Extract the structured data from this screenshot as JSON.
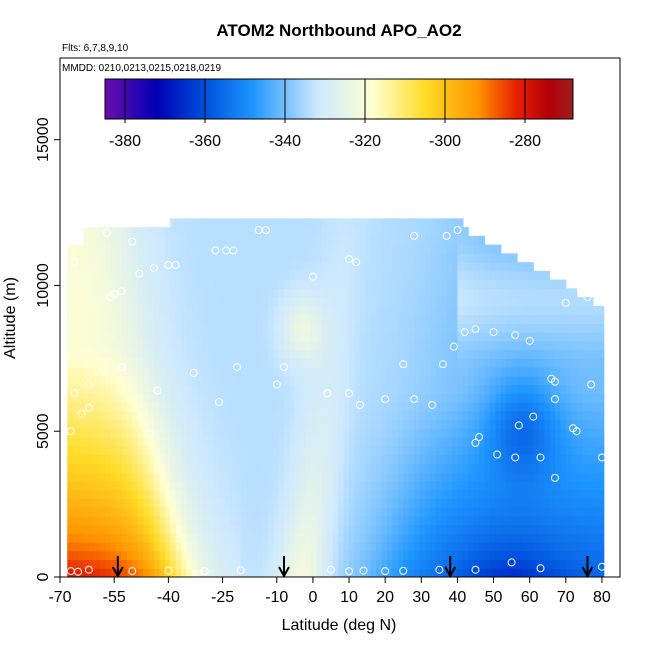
{
  "chart_data": {
    "type": "heatmap",
    "title": "ATOM2 Northbound APO_AO2",
    "notes": [
      "Flts: 6,7,8,9,10",
      "MMDD: 0210,0213,0215,0218,0219"
    ],
    "xlabel": "Latitude (deg N)",
    "ylabel": "Altitude (m)",
    "xlim": [
      -70,
      85
    ],
    "ylim": [
      0,
      17800
    ],
    "xticks": [
      -70,
      -55,
      -40,
      -25,
      -10,
      0,
      10,
      20,
      30,
      40,
      50,
      60,
      70,
      80
    ],
    "yticks": [
      0,
      5000,
      10000,
      15000
    ],
    "colorbar": {
      "range": [
        -385,
        -268
      ],
      "ticks": [
        -380,
        -360,
        -340,
        -320,
        -300,
        -280
      ],
      "colors": [
        "#6a0dad",
        "#0000b4",
        "#0050dc",
        "#1e96ff",
        "#cde9ff",
        "#ffffd2",
        "#ffdc28",
        "#ff9600",
        "#e61e00",
        "#b4000a",
        "#9b1e1e"
      ],
      "stops": [
        -385,
        -372,
        -360,
        -348,
        -332,
        -318,
        -305,
        -292,
        -282,
        -274,
        -268
      ],
      "position": "top"
    },
    "field": {
      "lat_range": [
        -68,
        80
      ],
      "alt_range": [
        0,
        12200
      ],
      "value_range": [
        -375,
        -283
      ]
    },
    "observations": [
      {
        "lat": -67,
        "alt": 200
      },
      {
        "lat": -65,
        "alt": 180
      },
      {
        "lat": -62,
        "alt": 250
      },
      {
        "lat": -50,
        "alt": 200
      },
      {
        "lat": -40,
        "alt": 220
      },
      {
        "lat": -30,
        "alt": 200
      },
      {
        "lat": -20,
        "alt": 230
      },
      {
        "lat": 5,
        "alt": 250
      },
      {
        "lat": 10,
        "alt": 200
      },
      {
        "lat": 14,
        "alt": 220
      },
      {
        "lat": 20,
        "alt": 200
      },
      {
        "lat": 25,
        "alt": 210
      },
      {
        "lat": 35,
        "alt": 250
      },
      {
        "lat": 45,
        "alt": 250
      },
      {
        "lat": 55,
        "alt": 500
      },
      {
        "lat": 63,
        "alt": 300
      },
      {
        "lat": 80,
        "alt": 350
      },
      {
        "lat": -67,
        "alt": 5000
      },
      {
        "lat": -64,
        "alt": 5600
      },
      {
        "lat": -62,
        "alt": 5800
      },
      {
        "lat": -66,
        "alt": 6300
      },
      {
        "lat": -62,
        "alt": 6600
      },
      {
        "lat": -58,
        "alt": 7100
      },
      {
        "lat": -53,
        "alt": 7200
      },
      {
        "lat": -45,
        "alt": 4900
      },
      {
        "lat": -43,
        "alt": 6400
      },
      {
        "lat": -33,
        "alt": 7000
      },
      {
        "lat": -26,
        "alt": 6000
      },
      {
        "lat": -21,
        "alt": 7200
      },
      {
        "lat": -10,
        "alt": 6600
      },
      {
        "lat": -8,
        "alt": 7200
      },
      {
        "lat": 4,
        "alt": 6300
      },
      {
        "lat": 10,
        "alt": 6300
      },
      {
        "lat": 13,
        "alt": 5900
      },
      {
        "lat": 20,
        "alt": 6100
      },
      {
        "lat": 25,
        "alt": 7300
      },
      {
        "lat": 28,
        "alt": 6100
      },
      {
        "lat": 33,
        "alt": 5900
      },
      {
        "lat": 36,
        "alt": 7300
      },
      {
        "lat": 45,
        "alt": 4600
      },
      {
        "lat": 46,
        "alt": 4800
      },
      {
        "lat": 51,
        "alt": 4200
      },
      {
        "lat": 56,
        "alt": 4100
      },
      {
        "lat": 57,
        "alt": 5200
      },
      {
        "lat": 61,
        "alt": 5500
      },
      {
        "lat": 63,
        "alt": 4100
      },
      {
        "lat": 67,
        "alt": 3400
      },
      {
        "lat": 72,
        "alt": 5100
      },
      {
        "lat": 73,
        "alt": 5000
      },
      {
        "lat": 77,
        "alt": 6600
      },
      {
        "lat": 80,
        "alt": 4100
      },
      {
        "lat": 66,
        "alt": 6800
      },
      {
        "lat": 67,
        "alt": 6700
      },
      {
        "lat": 67,
        "alt": 6100
      },
      {
        "lat": 50,
        "alt": 8400
      },
      {
        "lat": 56,
        "alt": 8300
      },
      {
        "lat": 60,
        "alt": 8100
      },
      {
        "lat": 45,
        "alt": 8500
      },
      {
        "lat": 42,
        "alt": 8400
      },
      {
        "lat": 39,
        "alt": 7900
      },
      {
        "lat": 70,
        "alt": 9400
      },
      {
        "lat": 76,
        "alt": 9600
      },
      {
        "lat": -56,
        "alt": 9600
      },
      {
        "lat": -55,
        "alt": 9700
      },
      {
        "lat": -53,
        "alt": 9800
      },
      {
        "lat": -48,
        "alt": 10400
      },
      {
        "lat": -44,
        "alt": 10600
      },
      {
        "lat": -40,
        "alt": 10700
      },
      {
        "lat": -38,
        "alt": 10700
      },
      {
        "lat": -66,
        "alt": 10800
      },
      {
        "lat": -27,
        "alt": 11200
      },
      {
        "lat": -24,
        "alt": 11200
      },
      {
        "lat": -22,
        "alt": 11200
      },
      {
        "lat": -50,
        "alt": 11500
      },
      {
        "lat": -57,
        "alt": 11800
      },
      {
        "lat": -64,
        "alt": 11900
      },
      {
        "lat": -15,
        "alt": 11900
      },
      {
        "lat": -13,
        "alt": 11900
      },
      {
        "lat": 10,
        "alt": 10900
      },
      {
        "lat": 12,
        "alt": 10800
      },
      {
        "lat": 0,
        "alt": 10300
      },
      {
        "lat": 28,
        "alt": 11700
      },
      {
        "lat": 37,
        "alt": 11700
      },
      {
        "lat": 40,
        "alt": 11900
      }
    ],
    "arrows_lat": [
      -54,
      -8,
      38,
      76
    ]
  }
}
